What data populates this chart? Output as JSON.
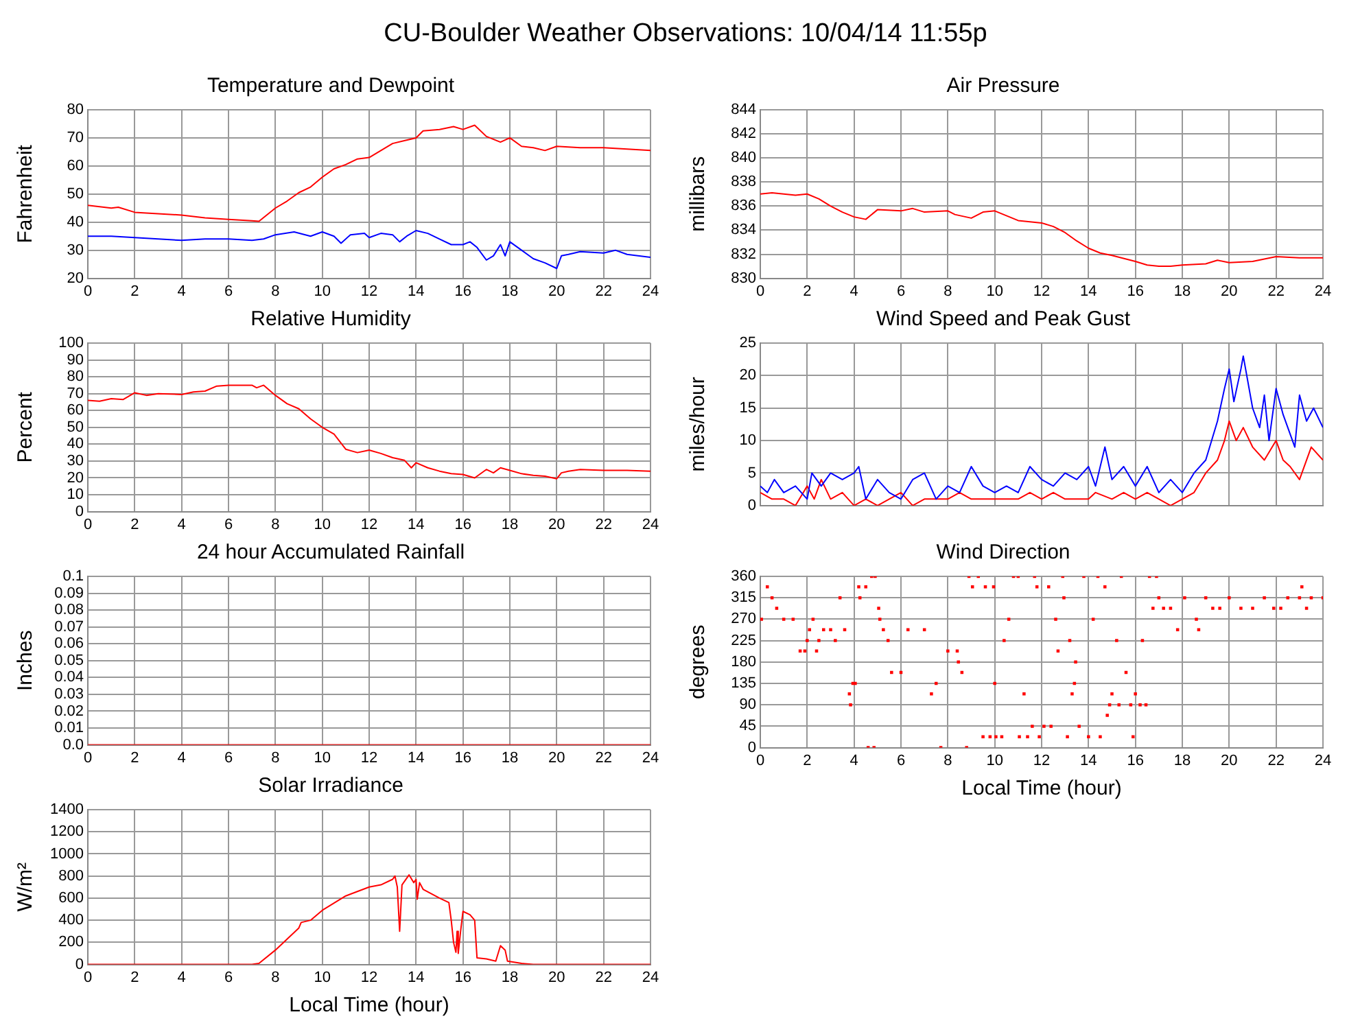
{
  "chart_data": [
    {
      "type": "other",
      "title": "CU-Boulder Weather Observations: 10/04/14 11:55p"
    },
    {
      "type": "line",
      "title": "Temperature and Dewpoint",
      "ylabel": "Fahrenheit",
      "xlim": [
        0,
        24
      ],
      "xticks": [
        0,
        2,
        4,
        6,
        8,
        10,
        12,
        14,
        16,
        18,
        20,
        22,
        24
      ],
      "ylim": [
        20,
        80
      ],
      "yticks": [
        20,
        30,
        40,
        50,
        60,
        70,
        80
      ],
      "grid": true,
      "series": [
        {
          "color": "#ff0000",
          "x": [
            0,
            1,
            1.3,
            2,
            3,
            4,
            5,
            6,
            7,
            7.3,
            8,
            8.5,
            9,
            9.5,
            10,
            10.5,
            11,
            11.5,
            12,
            12.5,
            13,
            13.5,
            14,
            14.3,
            15,
            15.6,
            16,
            16.5,
            17,
            17.6,
            18,
            18.5,
            19,
            19.5,
            20,
            21,
            22,
            23,
            24
          ],
          "values": [
            46,
            45,
            45.3,
            43.5,
            43,
            42.5,
            41.5,
            41,
            40.5,
            40.3,
            45,
            47.5,
            50.5,
            52.5,
            56,
            59,
            60.5,
            62.5,
            63,
            65.5,
            68,
            69,
            70,
            72.5,
            73,
            74,
            73,
            74.5,
            70.5,
            68.5,
            70,
            67,
            66.5,
            65.5,
            67,
            66.5,
            66.5,
            66,
            65.5
          ]
        },
        {
          "color": "#0000ff",
          "x": [
            0,
            1,
            2,
            3,
            4,
            5,
            6,
            7,
            7.5,
            8,
            8.8,
            9.5,
            10,
            10.5,
            10.8,
            11.2,
            11.8,
            12,
            12.5,
            13,
            13.3,
            13.6,
            14,
            14.5,
            15,
            15.5,
            16,
            16.3,
            16.6,
            17,
            17.3,
            17.6,
            17.8,
            18,
            18.5,
            19,
            19.5,
            20,
            20.2,
            20.5,
            21,
            22,
            22.5,
            23,
            24
          ],
          "values": [
            35,
            35,
            34.5,
            34,
            33.5,
            34,
            34,
            33.5,
            34,
            35.5,
            36.5,
            35,
            36.5,
            35,
            32.5,
            35.5,
            36,
            34.5,
            36,
            35.5,
            33,
            35,
            37,
            36,
            34,
            32,
            32,
            33,
            31,
            26.5,
            28,
            32,
            28,
            33,
            30,
            27,
            25.5,
            23.5,
            28,
            28.5,
            29.5,
            29,
            30,
            28.5,
            27.5
          ]
        }
      ]
    },
    {
      "type": "line",
      "title": "Air Pressure",
      "ylabel": "millibars",
      "xlim": [
        0,
        24
      ],
      "xticks": [
        0,
        2,
        4,
        6,
        8,
        10,
        12,
        14,
        16,
        18,
        20,
        22,
        24
      ],
      "ylim": [
        830,
        844
      ],
      "yticks": [
        830,
        832,
        834,
        836,
        838,
        840,
        842,
        844
      ],
      "grid": true,
      "series": [
        {
          "color": "#ff0000",
          "x": [
            0,
            0.5,
            1,
            1.5,
            2,
            2.5,
            3,
            3.5,
            4,
            4.5,
            5,
            6,
            6.5,
            7,
            8,
            8.3,
            9,
            9.5,
            10,
            10.5,
            11,
            11.5,
            12,
            12.5,
            13,
            13.5,
            14,
            14.5,
            15,
            16,
            16.5,
            17,
            17.5,
            18,
            19,
            19.5,
            20,
            21,
            21.5,
            22,
            23,
            24
          ],
          "values": [
            837,
            837.1,
            837,
            836.9,
            837,
            836.6,
            836,
            835.5,
            835.1,
            834.9,
            835.7,
            835.6,
            835.8,
            835.5,
            835.6,
            835.3,
            835,
            835.5,
            835.6,
            835.2,
            834.8,
            834.7,
            834.6,
            834.3,
            833.8,
            833.1,
            832.5,
            832.1,
            831.9,
            831.4,
            831.1,
            831,
            831,
            831.1,
            831.2,
            831.5,
            831.3,
            831.4,
            831.6,
            831.8,
            831.7,
            831.7
          ]
        }
      ]
    },
    {
      "type": "line",
      "title": "Relative Humidity",
      "ylabel": "Percent",
      "xlim": [
        0,
        24
      ],
      "xticks": [
        0,
        2,
        4,
        6,
        8,
        10,
        12,
        14,
        16,
        18,
        20,
        22,
        24
      ],
      "ylim": [
        0,
        100
      ],
      "yticks": [
        0,
        10,
        20,
        30,
        40,
        50,
        60,
        70,
        80,
        90,
        100
      ],
      "grid": true,
      "series": [
        {
          "color": "#ff0000",
          "x": [
            0,
            0.5,
            1,
            1.5,
            2,
            2.5,
            3,
            4,
            4.5,
            5,
            5.5,
            6,
            7,
            7.2,
            7.5,
            8,
            8.5,
            9,
            9.5,
            10,
            10.5,
            11,
            11.5,
            12,
            12.5,
            13,
            13.5,
            13.8,
            14,
            14.5,
            15,
            15.5,
            16,
            16.5,
            17,
            17.3,
            17.6,
            18,
            18.5,
            19,
            19.5,
            20,
            20.2,
            20.5,
            21,
            22,
            23,
            24
          ],
          "values": [
            66,
            65.5,
            67,
            66.5,
            70.5,
            69,
            70,
            69.5,
            71,
            71.5,
            74.5,
            75,
            75,
            73.5,
            75,
            69,
            64,
            61,
            55,
            50,
            46,
            37,
            35,
            36.5,
            34.5,
            32,
            30.5,
            26,
            29,
            26,
            24,
            22.5,
            22,
            20,
            25,
            23,
            26,
            24.5,
            22.5,
            21.5,
            21,
            19.5,
            23,
            24,
            25,
            24.5,
            24.5,
            24
          ]
        }
      ]
    },
    {
      "type": "line",
      "title": "Wind Speed and Peak Gust",
      "ylabel": "miles/hour",
      "xlim": [
        0,
        24
      ],
      "xticks": [
        0,
        2,
        4,
        6,
        8,
        10,
        12,
        14,
        16,
        18,
        20,
        22,
        24
      ],
      "ylim": [
        0,
        25
      ],
      "yticks": [
        0,
        5,
        10,
        15,
        20,
        25
      ],
      "grid": true,
      "tick_labels": "y",
      "series": [
        {
          "color": "#0000ff",
          "x": [
            0,
            0.3,
            0.6,
            1,
            1.5,
            2,
            2.2,
            2.6,
            3,
            3.5,
            4,
            4.2,
            4.5,
            5,
            5.5,
            6,
            6.5,
            7,
            7.5,
            8,
            8.5,
            9,
            9.5,
            10,
            10.5,
            11,
            11.5,
            12,
            12.5,
            13,
            13.5,
            14,
            14.3,
            14.7,
            15,
            15.5,
            16,
            16.5,
            17,
            17.5,
            18,
            18.5,
            19,
            19.5,
            19.8,
            20,
            20.2,
            20.5,
            20.6,
            21,
            21.3,
            21.5,
            21.7,
            22,
            22.3,
            22.6,
            22.8,
            23,
            23.3,
            23.6,
            24
          ],
          "values": [
            3,
            2,
            4,
            2,
            3,
            1,
            5,
            3,
            5,
            4,
            5,
            6,
            1,
            4,
            2,
            1,
            4,
            5,
            1,
            3,
            2,
            6,
            3,
            2,
            3,
            2,
            6,
            4,
            3,
            5,
            4,
            6,
            3,
            9,
            4,
            6,
            3,
            6,
            2,
            4,
            2,
            5,
            7,
            13,
            18,
            21,
            16,
            21,
            23,
            15,
            12,
            17,
            10,
            18,
            14,
            11,
            9,
            17,
            13,
            15,
            12
          ]
        },
        {
          "color": "#ff0000",
          "x": [
            0,
            0.5,
            1,
            1.5,
            2,
            2.3,
            2.6,
            3,
            3.5,
            4,
            4.5,
            5,
            5.5,
            6,
            6.5,
            7,
            8,
            8.5,
            9,
            10,
            11,
            11.5,
            12,
            12.5,
            13,
            14,
            14.3,
            15,
            15.5,
            16,
            16.5,
            17,
            17.5,
            18,
            18.5,
            19,
            19.5,
            19.8,
            20,
            20.3,
            20.6,
            21,
            21.5,
            22,
            22.3,
            22.6,
            23,
            23.5,
            24
          ],
          "values": [
            2,
            1,
            1,
            0,
            3,
            1,
            4,
            1,
            2,
            0,
            1,
            0,
            1,
            2,
            0,
            1,
            1,
            2,
            1,
            1,
            1,
            2,
            1,
            2,
            1,
            1,
            2,
            1,
            2,
            1,
            2,
            1,
            0,
            1,
            2,
            5,
            7,
            10,
            13,
            10,
            12,
            9,
            7,
            10,
            7,
            6,
            4,
            9,
            7
          ]
        }
      ]
    },
    {
      "type": "line",
      "title": "24 hour Accumulated Rainfall",
      "ylabel": "Inches",
      "xlim": [
        0,
        24
      ],
      "xticks": [
        0,
        2,
        4,
        6,
        8,
        10,
        12,
        14,
        16,
        18,
        20,
        22,
        24
      ],
      "ylim": [
        0,
        0.1
      ],
      "yticks": [
        {
          "value": 0,
          "label": "0.0"
        },
        0.01,
        0.02,
        0.03,
        0.04,
        0.05,
        0.06,
        0.07,
        0.08,
        0.09,
        0.1
      ],
      "grid": true,
      "series": [
        {
          "color": "#ff0000",
          "x": [
            0,
            24
          ],
          "values": [
            0,
            0
          ]
        }
      ]
    },
    {
      "type": "scatter",
      "title": "Wind Direction",
      "xlabel": "Local Time (hour)",
      "ylabel": "degrees",
      "xlim": [
        0,
        24
      ],
      "xticks": [
        0,
        2,
        4,
        6,
        8,
        10,
        12,
        14,
        16,
        18,
        20,
        22,
        24
      ],
      "ylim": [
        0,
        360
      ],
      "yticks": [
        0,
        45,
        90,
        135,
        180,
        225,
        270,
        315,
        360
      ],
      "grid": true,
      "marker": "square",
      "series": [
        {
          "color": "#ff0000",
          "x": [
            0.05,
            0.3,
            0.5,
            0.7,
            1,
            1.4,
            1.7,
            1.9,
            2,
            2.1,
            2.25,
            2.4,
            2.5,
            2.7,
            3,
            3.2,
            3.4,
            3.6,
            3.8,
            3.85,
            3.95,
            4.05,
            4.2,
            4.25,
            4.5,
            4.6,
            4.75,
            4.85,
            4.9,
            5.05,
            5.1,
            5.25,
            5.45,
            5.6,
            6,
            6.3,
            7,
            7.3,
            7.5,
            7.7,
            8,
            8.4,
            8.45,
            8.6,
            8.8,
            8.9,
            9.05,
            9.3,
            9.5,
            9.6,
            9.8,
            9.95,
            10,
            10.05,
            10.3,
            10.4,
            10.6,
            10.8,
            11,
            11.05,
            11.25,
            11.4,
            11.6,
            11.7,
            11.8,
            11.9,
            12.1,
            12.3,
            12.4,
            12.6,
            12.7,
            12.9,
            12.95,
            13.1,
            13.2,
            13.3,
            13.4,
            13.45,
            13.6,
            13.8,
            14,
            14.2,
            14.4,
            14.5,
            14.7,
            14.8,
            14.9,
            15,
            15.2,
            15.3,
            15.4,
            15.6,
            15.8,
            15.9,
            16,
            16.2,
            16.3,
            16.45,
            16.6,
            16.75,
            16.9,
            17,
            17.2,
            17.5,
            17.8,
            18.1,
            18.6,
            18.7,
            19,
            19.3,
            19.6,
            20,
            20.5,
            21,
            21.5,
            21.9,
            22.2,
            22.5,
            23,
            23.1,
            23.3,
            23.5,
            24
          ],
          "values": [
            270,
            338,
            315,
            293,
            270,
            270,
            203,
            203,
            225,
            248,
            270,
            203,
            225,
            248,
            248,
            225,
            315,
            248,
            113,
            90,
            135,
            135,
            338,
            315,
            338,
            0,
            360,
            0,
            360,
            293,
            270,
            248,
            225,
            158,
            158,
            248,
            248,
            113,
            135,
            0,
            203,
            203,
            180,
            158,
            0,
            360,
            338,
            360,
            23,
            338,
            23,
            338,
            135,
            23,
            23,
            225,
            270,
            360,
            360,
            23,
            113,
            23,
            45,
            360,
            338,
            23,
            45,
            338,
            45,
            270,
            203,
            360,
            315,
            23,
            225,
            113,
            135,
            180,
            45,
            360,
            23,
            270,
            360,
            23,
            338,
            68,
            90,
            113,
            225,
            90,
            360,
            158,
            90,
            23,
            113,
            90,
            225,
            90,
            360,
            293,
            360,
            315,
            293,
            293,
            248,
            315,
            270,
            248,
            315,
            293,
            293,
            315,
            293,
            293,
            315,
            293,
            293,
            315,
            315,
            338,
            293,
            315,
            315
          ]
        }
      ]
    },
    {
      "type": "line",
      "title": "Solar Irradiance",
      "xlabel": "Local Time (hour)",
      "ylabel": "W/m²",
      "xlim": [
        0,
        24
      ],
      "xticks": [
        0,
        2,
        4,
        6,
        8,
        10,
        12,
        14,
        16,
        18,
        20,
        22,
        24
      ],
      "ylim": [
        0,
        1400
      ],
      "yticks": [
        0,
        200,
        400,
        600,
        800,
        1000,
        1200,
        1400
      ],
      "grid": true,
      "series": [
        {
          "color": "#ff0000",
          "x": [
            0,
            7,
            7.3,
            8,
            9,
            9.1,
            9.5,
            10,
            11,
            12,
            12.5,
            13,
            13.1,
            13.2,
            13.3,
            13.4,
            13.7,
            13.9,
            14,
            14.05,
            14.15,
            14.3,
            15,
            15.4,
            15.5,
            15.6,
            15.7,
            15.75,
            15.8,
            15.9,
            16,
            16.3,
            16.5,
            16.6,
            17,
            17.4,
            17.6,
            17.8,
            17.9,
            18.5,
            19,
            24
          ],
          "values": [
            0,
            0,
            10,
            130,
            330,
            380,
            400,
            490,
            620,
            700,
            720,
            770,
            800,
            700,
            300,
            720,
            810,
            740,
            770,
            590,
            740,
            680,
            600,
            560,
            400,
            200,
            110,
            300,
            100,
            300,
            480,
            450,
            400,
            60,
            50,
            30,
            170,
            130,
            30,
            10,
            0,
            0
          ]
        }
      ]
    }
  ]
}
